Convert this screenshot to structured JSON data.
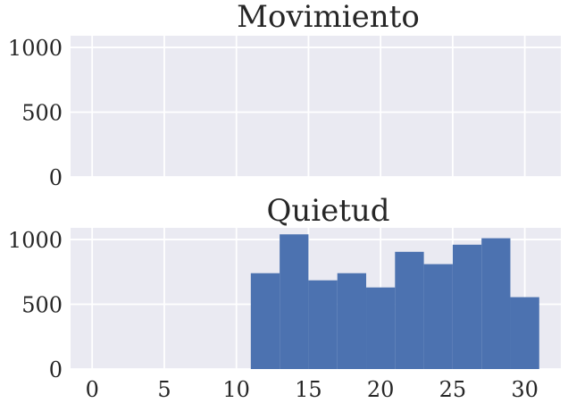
{
  "chart_data": [
    {
      "type": "bar",
      "title": "Movimiento",
      "xlabel": "",
      "ylabel": "",
      "xlim": [
        -1.5,
        32.5
      ],
      "ylim": [
        0,
        1090
      ],
      "xticks": [
        0,
        5,
        10,
        15,
        20,
        25,
        30
      ],
      "yticks": [
        0,
        500,
        1000
      ],
      "bins": [],
      "grid": true,
      "bar_color": "#4c72b0",
      "background_color": "#eaeaf2"
    },
    {
      "type": "bar",
      "title": "Quietud",
      "xlabel": "",
      "ylabel": "",
      "xlim": [
        -1.5,
        32.5
      ],
      "ylim": [
        0,
        1090
      ],
      "xticks": [
        0,
        5,
        10,
        15,
        20,
        25,
        30
      ],
      "yticks": [
        0,
        500,
        1000
      ],
      "bins": [
        {
          "x0": 11,
          "x1": 13,
          "value": 740
        },
        {
          "x0": 13,
          "x1": 15,
          "value": 1040
        },
        {
          "x0": 15,
          "x1": 17,
          "value": 685
        },
        {
          "x0": 17,
          "x1": 19,
          "value": 740
        },
        {
          "x0": 19,
          "x1": 21,
          "value": 630
        },
        {
          "x0": 21,
          "x1": 23,
          "value": 905
        },
        {
          "x0": 23,
          "x1": 25,
          "value": 810
        },
        {
          "x0": 25,
          "x1": 27,
          "value": 960
        },
        {
          "x0": 27,
          "x1": 29,
          "value": 1010
        },
        {
          "x0": 29,
          "x1": 31,
          "value": 555
        }
      ],
      "grid": true,
      "bar_color": "#4c72b0",
      "background_color": "#eaeaf2"
    }
  ]
}
